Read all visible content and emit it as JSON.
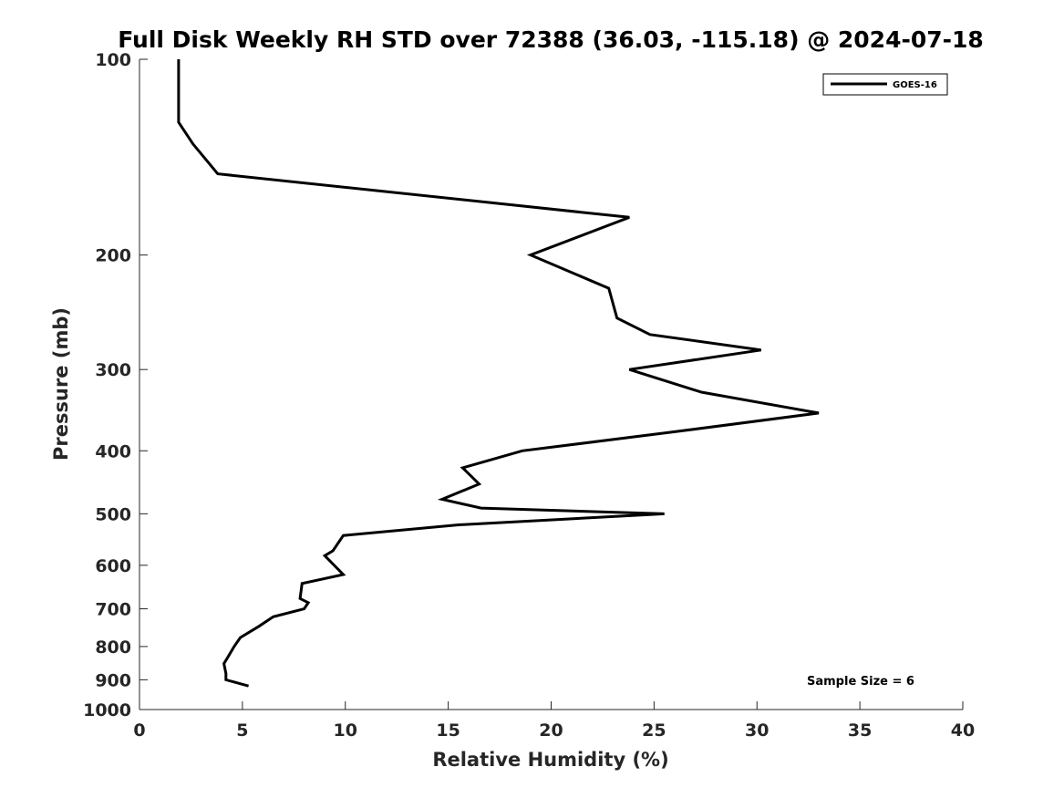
{
  "chart_data": {
    "type": "line",
    "title": "Full Disk Weekly RH STD over 72388 (36.03, -115.18) @ 2024-07-18",
    "xlabel": "Relative Humidity (%)",
    "ylabel": "Pressure (mb)",
    "xlim": [
      0,
      40
    ],
    "ylim": [
      100,
      1000
    ],
    "yscale": "log",
    "y_reversed": true,
    "x_ticks": [
      0,
      5,
      10,
      15,
      20,
      25,
      30,
      35,
      40
    ],
    "y_ticks": [
      100,
      200,
      300,
      400,
      500,
      600,
      700,
      800,
      900,
      1000
    ],
    "grid": false,
    "legend": {
      "position": "top-right",
      "entries": [
        "GOES-16"
      ]
    },
    "annotation": "Sample Size = 6",
    "series": [
      {
        "name": "GOES-16",
        "color": "#000000",
        "points": [
          {
            "x": 1.9,
            "y": 100
          },
          {
            "x": 1.9,
            "y": 125
          },
          {
            "x": 2.6,
            "y": 135
          },
          {
            "x": 3.8,
            "y": 150
          },
          {
            "x": 23.8,
            "y": 175
          },
          {
            "x": 19.0,
            "y": 200
          },
          {
            "x": 22.8,
            "y": 225
          },
          {
            "x": 23.2,
            "y": 250
          },
          {
            "x": 24.8,
            "y": 265
          },
          {
            "x": 30.2,
            "y": 280
          },
          {
            "x": 23.8,
            "y": 300
          },
          {
            "x": 27.3,
            "y": 325
          },
          {
            "x": 33.0,
            "y": 350
          },
          {
            "x": 25.7,
            "y": 375
          },
          {
            "x": 18.6,
            "y": 400
          },
          {
            "x": 15.7,
            "y": 425
          },
          {
            "x": 16.5,
            "y": 450
          },
          {
            "x": 14.7,
            "y": 475
          },
          {
            "x": 16.6,
            "y": 490
          },
          {
            "x": 25.5,
            "y": 500
          },
          {
            "x": 15.5,
            "y": 520
          },
          {
            "x": 9.9,
            "y": 540
          },
          {
            "x": 9.4,
            "y": 570
          },
          {
            "x": 9.0,
            "y": 580
          },
          {
            "x": 9.9,
            "y": 620
          },
          {
            "x": 7.9,
            "y": 640
          },
          {
            "x": 7.8,
            "y": 675
          },
          {
            "x": 8.2,
            "y": 685
          },
          {
            "x": 8.0,
            "y": 700
          },
          {
            "x": 6.5,
            "y": 720
          },
          {
            "x": 5.8,
            "y": 745
          },
          {
            "x": 4.9,
            "y": 775
          },
          {
            "x": 4.6,
            "y": 800
          },
          {
            "x": 4.3,
            "y": 830
          },
          {
            "x": 4.1,
            "y": 850
          },
          {
            "x": 4.2,
            "y": 880
          },
          {
            "x": 4.2,
            "y": 900
          },
          {
            "x": 5.3,
            "y": 920
          }
        ]
      }
    ]
  }
}
